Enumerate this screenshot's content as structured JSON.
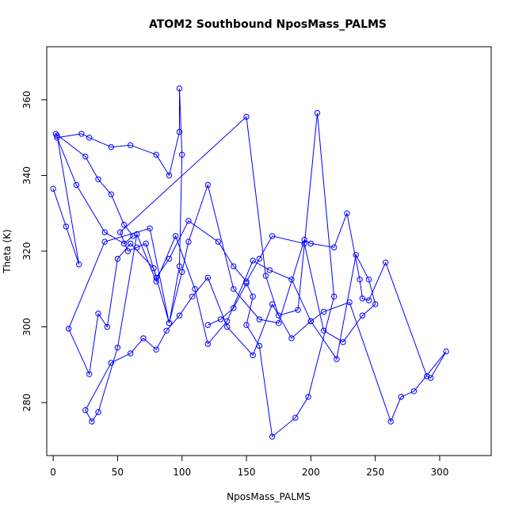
{
  "chart_data": {
    "type": "line",
    "title": "ATOM2 Southbound NposMass_PALMS",
    "xlabel": "NposMass_PALMS",
    "ylabel": "Theta (K)",
    "xlim": [
      -5,
      340
    ],
    "ylim": [
      266,
      374
    ],
    "xticks": [
      0,
      50,
      100,
      150,
      200,
      250,
      300
    ],
    "yticks": [
      280,
      300,
      320,
      340,
      360
    ],
    "grid": false,
    "line_color": "#0000ff",
    "series": [
      {
        "marker": "open-circle",
        "x": [
          0,
          10,
          20,
          3,
          2,
          25,
          35,
          45,
          55,
          62,
          55,
          40,
          18,
          3,
          22,
          28,
          45,
          60,
          80,
          90,
          98,
          98,
          100,
          98,
          90,
          78,
          60,
          50,
          42,
          35,
          28,
          12,
          40,
          75,
          90,
          100,
          105,
          120,
          140,
          160,
          175,
          195,
          200,
          218,
          228,
          238,
          240,
          245,
          258,
          290,
          293,
          305,
          280,
          270,
          262,
          230,
          210,
          200,
          185,
          168,
          155,
          135,
          120,
          110,
          95,
          80,
          65,
          50,
          35,
          30,
          25,
          45,
          60,
          70,
          80,
          88,
          98,
          108,
          120,
          135,
          155,
          170,
          185,
          200,
          220,
          235,
          245,
          250,
          240,
          225,
          210,
          195,
          170,
          160,
          150,
          140,
          128,
          105,
          90,
          80,
          72,
          65,
          58,
          52,
          150,
          165,
          175,
          190,
          205,
          218,
          198,
          188,
          170,
          160,
          150,
          155,
          150,
          140,
          130,
          120
        ],
        "y": [
          336.5,
          326.5,
          316.5,
          350.5,
          351,
          345,
          339,
          335,
          327,
          324,
          322,
          325,
          337.5,
          350,
          351,
          350,
          347.5,
          348,
          345.5,
          340,
          351.5,
          363,
          345.5,
          316,
          301,
          315.5,
          322,
          318,
          300,
          303.5,
          287.5,
          299.5,
          322.5,
          326,
          301,
          314.5,
          322.5,
          337.5,
          310,
          302,
          301,
          323,
          322,
          321,
          330,
          312.5,
          307.5,
          307,
          317,
          287,
          286.5,
          293.5,
          283,
          281.5,
          275,
          306.5,
          304,
          301.5,
          312.5,
          315,
          317.5,
          301.5,
          295.5,
          310,
          324,
          312,
          324.5,
          294.5,
          277.5,
          275,
          278,
          290.5,
          293,
          297,
          294,
          299,
          303,
          308,
          313,
          300,
          292.5,
          306,
          297,
          301.5,
          291.5,
          319,
          312.5,
          306,
          303,
          296,
          299,
          322,
          324,
          318,
          312,
          316,
          322.5,
          328,
          318,
          313,
          322,
          321,
          320,
          325,
          355.5,
          313.5,
          303,
          304.5,
          356.5,
          308,
          281.5,
          276,
          271,
          295,
          300.5,
          308,
          311.5,
          305,
          302,
          300.5
        ]
      }
    ]
  }
}
